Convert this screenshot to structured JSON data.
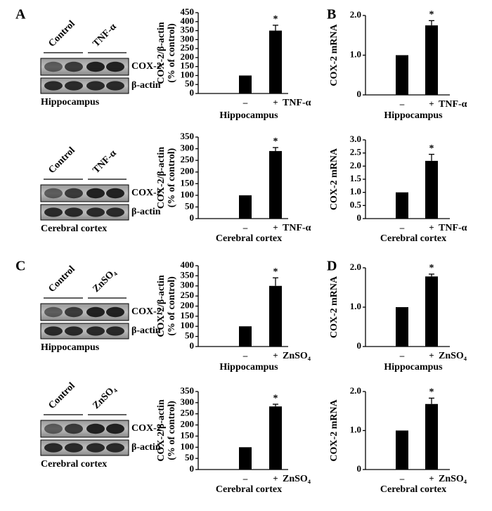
{
  "panels": [
    "A",
    "B",
    "C",
    "D"
  ],
  "blots": [
    {
      "lanes": [
        "Control",
        "TNF-α"
      ],
      "proteins": [
        "COX-2",
        "β-actin"
      ],
      "region": "Hippocampus"
    },
    {
      "lanes": [
        "Control",
        "TNF-α"
      ],
      "proteins": [
        "COX-2",
        "β-actin"
      ],
      "region": "Cerebral cortex"
    },
    {
      "lanes": [
        "Control",
        "ZnSO₄"
      ],
      "proteins": [
        "COX-2",
        "β-actin"
      ],
      "region": "Hippocampus"
    },
    {
      "lanes": [
        "Control",
        "ZnSO₄"
      ],
      "proteins": [
        "COX-2",
        "β-actin"
      ],
      "region": "Cerebral cortex"
    }
  ],
  "chart_data": [
    {
      "type": "bar",
      "ylabel": [
        "COX-2/β-actin",
        "(% of control)"
      ],
      "xlabel": "Hippocampus",
      "categories": [
        "–",
        "+"
      ],
      "treatment": "TNF-α",
      "values": [
        100,
        350
      ],
      "errors": [
        0,
        30
      ],
      "annotation": "*",
      "color": "#000000",
      "ylim": [
        0,
        450
      ],
      "yticks": [
        0,
        50,
        100,
        150,
        200,
        250,
        300,
        350,
        400,
        450
      ]
    },
    {
      "type": "bar",
      "ylabel": [
        "COX-2 mRNA"
      ],
      "xlabel": "Hippocampus",
      "categories": [
        "–",
        "+"
      ],
      "treatment": "TNF-α",
      "values": [
        1.0,
        1.75
      ],
      "errors": [
        0,
        0.12
      ],
      "annotation": "*",
      "color": "#000000",
      "ylim": [
        0,
        2.0
      ],
      "yticks": [
        0,
        {
          "value": 1,
          "label": "1.0"
        },
        {
          "value": 2,
          "label": "2.0"
        }
      ]
    },
    {
      "type": "bar",
      "ylabel": [
        "COX-2/β-actin",
        "(% of control)"
      ],
      "xlabel": "Cerebral cortex",
      "categories": [
        "–",
        "+"
      ],
      "treatment": "TNF-α",
      "values": [
        100,
        290
      ],
      "errors": [
        0,
        15
      ],
      "annotation": "*",
      "color": "#000000",
      "ylim": [
        0,
        350
      ],
      "yticks": [
        0,
        50,
        100,
        150,
        200,
        250,
        300,
        350
      ]
    },
    {
      "type": "bar",
      "ylabel": [
        "COX-2 mRNA"
      ],
      "xlabel": "Cerebral cortex",
      "categories": [
        "–",
        "+"
      ],
      "treatment": "TNF-α",
      "values": [
        1.0,
        2.2
      ],
      "errors": [
        0,
        0.25
      ],
      "annotation": "*",
      "color": "#000000",
      "ylim": [
        0,
        3.0
      ],
      "yticks": [
        0,
        0.5,
        {
          "value": 1,
          "label": "1.0"
        },
        1.5,
        {
          "value": 2,
          "label": "2.0"
        },
        2.5,
        {
          "value": 3,
          "label": "3.0"
        }
      ]
    },
    {
      "type": "bar",
      "ylabel": [
        "COX-2/β-actin",
        "(% of control)"
      ],
      "xlabel": "Hippocampus",
      "categories": [
        "–",
        "+"
      ],
      "treatment": "ZnSO₄",
      "values": [
        100,
        300
      ],
      "errors": [
        0,
        40
      ],
      "annotation": "*",
      "color": "#000000",
      "ylim": [
        0,
        400
      ],
      "yticks": [
        0,
        50,
        100,
        150,
        200,
        250,
        300,
        350,
        400
      ]
    },
    {
      "type": "bar",
      "ylabel": [
        "COX-2 mRNA"
      ],
      "xlabel": "Hippocampus",
      "categories": [
        "–",
        "+"
      ],
      "treatment": "ZnSO₄",
      "values": [
        1.0,
        1.78
      ],
      "errors": [
        0,
        0.06
      ],
      "annotation": "*",
      "color": "#000000",
      "ylim": [
        0,
        2.0
      ],
      "yticks": [
        0,
        {
          "value": 1,
          "label": "1.0"
        },
        {
          "value": 2,
          "label": "2.0"
        }
      ]
    },
    {
      "type": "bar",
      "ylabel": [
        "COX-2/β-actin",
        "(% of control)"
      ],
      "xlabel": "Cerebral cortex",
      "categories": [
        "–",
        "+"
      ],
      "treatment": "ZnSO₄",
      "values": [
        100,
        283
      ],
      "errors": [
        0,
        10
      ],
      "annotation": "*",
      "color": "#000000",
      "ylim": [
        0,
        350
      ],
      "yticks": [
        0,
        50,
        100,
        150,
        200,
        250,
        300,
        350
      ]
    },
    {
      "type": "bar",
      "ylabel": [
        "COX-2 mRNA"
      ],
      "xlabel": "Cerebral cortex",
      "categories": [
        "–",
        "+"
      ],
      "treatment": "ZnSO₄",
      "values": [
        1.0,
        1.68
      ],
      "errors": [
        0,
        0.15
      ],
      "annotation": "*",
      "color": "#000000",
      "ylim": [
        0,
        2.0
      ],
      "yticks": [
        0,
        {
          "value": 1,
          "label": "1.0"
        },
        {
          "value": 2,
          "label": "2.0"
        }
      ]
    }
  ]
}
